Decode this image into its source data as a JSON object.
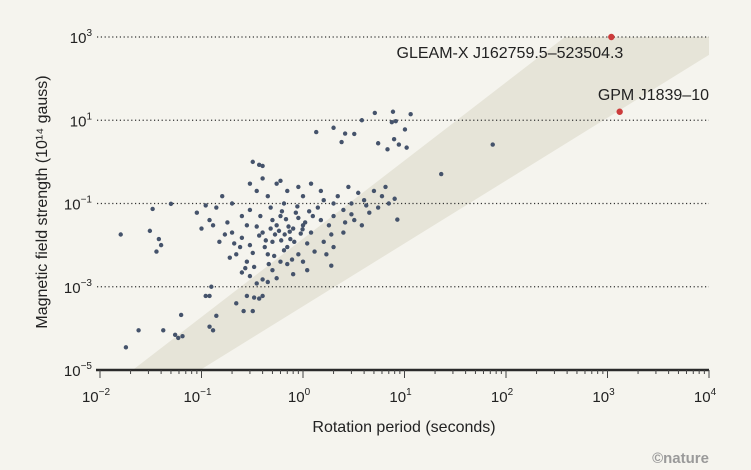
{
  "chart_data": {
    "type": "scatter",
    "title": "",
    "xlabel": "Rotation period (seconds)",
    "ylabel": "Magnetic field strength (10¹⁴ gauss)",
    "xscale": "log",
    "yscale": "log",
    "xlim": [
      0.01,
      10000
    ],
    "ylim": [
      1e-05,
      1000
    ],
    "x_ticks": [
      {
        "value": 0.01,
        "base": "10",
        "exp": "−2"
      },
      {
        "value": 0.1,
        "base": "10",
        "exp": "−1"
      },
      {
        "value": 1,
        "base": "10",
        "exp": "0"
      },
      {
        "value": 10,
        "base": "10",
        "exp": "1"
      },
      {
        "value": 100,
        "base": "10",
        "exp": "2"
      },
      {
        "value": 1000,
        "base": "10",
        "exp": "3"
      },
      {
        "value": 10000,
        "base": "10",
        "exp": "4"
      }
    ],
    "y_ticks": [
      {
        "value": 1000,
        "base": "10",
        "exp": "3"
      },
      {
        "value": 10,
        "base": "10",
        "exp": "1"
      },
      {
        "value": 0.1,
        "base": "10",
        "exp": "−1"
      },
      {
        "value": 0.001,
        "base": "10",
        "exp": "−3"
      },
      {
        "value": 1e-05,
        "base": "10",
        "exp": "−5"
      }
    ],
    "grid": "horizontal dotted at major y ticks",
    "shaded_band": {
      "polygon": [
        [
          0.021,
          1e-05
        ],
        [
          380,
          1000
        ],
        [
          10000,
          1000
        ],
        [
          10000,
          372
        ],
        [
          0.097,
          1e-05
        ]
      ],
      "color": "#e6e4d8"
    },
    "colors": {
      "points": "#45536b",
      "highlight": "#cc3b3b",
      "background": "#f5f4ee"
    },
    "highlighted": [
      {
        "label": "GLEAM-X J162759.5–523504.3",
        "x": 1091,
        "y": 1000
      },
      {
        "label": "GPM J1839–10",
        "x": 1318,
        "y": 16
      }
    ],
    "points": [
      [
        0.016,
        0.018
      ],
      [
        0.018,
        3.5e-05
      ],
      [
        0.024,
        9e-05
      ],
      [
        0.042,
        9e-05
      ],
      [
        0.063,
        0.00021
      ],
      [
        0.059,
        5.9e-05
      ],
      [
        0.055,
        7e-05
      ],
      [
        0.065,
        6.5e-05
      ],
      [
        0.12,
        0.00011
      ],
      [
        0.13,
        9e-05
      ],
      [
        0.14,
        0.0002
      ],
      [
        0.031,
        0.022
      ],
      [
        0.05,
        0.098
      ],
      [
        0.033,
        0.074
      ],
      [
        0.036,
        0.007
      ],
      [
        0.04,
        0.01
      ],
      [
        0.038,
        0.014
      ],
      [
        0.32,
        1.0
      ],
      [
        0.37,
        0.85
      ],
      [
        0.4,
        0.8
      ],
      [
        1.35,
        5.2
      ],
      [
        2.0,
        6.6
      ],
      [
        2.6,
        4.8
      ],
      [
        3.2,
        4.7
      ],
      [
        3.8,
        10
      ],
      [
        5.1,
        15
      ],
      [
        7.7,
        16
      ],
      [
        11.5,
        14
      ],
      [
        7.5,
        9
      ],
      [
        8.2,
        9.5
      ],
      [
        10.1,
        6
      ],
      [
        2.4,
        3
      ],
      [
        5.5,
        2.8
      ],
      [
        6.8,
        2.0
      ],
      [
        7.9,
        3.5
      ],
      [
        8.8,
        2.6
      ],
      [
        10.5,
        2.2
      ],
      [
        23,
        0.51
      ],
      [
        74,
        2.6
      ],
      [
        8.5,
        0.041
      ],
      [
        1.9,
        0.0032
      ],
      [
        0.26,
        0.00026
      ],
      [
        0.32,
        0.00026
      ],
      [
        0.22,
        0.0004
      ],
      [
        0.28,
        0.0006
      ],
      [
        0.33,
        0.00055
      ],
      [
        0.37,
        0.00052
      ],
      [
        0.4,
        0.0006
      ],
      [
        0.11,
        0.0006
      ],
      [
        0.12,
        0.0006
      ],
      [
        0.125,
        0.001
      ],
      [
        0.66,
        0.018
      ],
      [
        0.5,
        0.012
      ],
      [
        0.8,
        0.025
      ],
      [
        0.4,
        0.02
      ],
      [
        1.0,
        0.03
      ],
      [
        0.3,
        0.01
      ],
      [
        0.55,
        0.03
      ],
      [
        0.7,
        0.009
      ],
      [
        1.2,
        0.02
      ],
      [
        0.9,
        0.045
      ],
      [
        0.35,
        0.028
      ],
      [
        0.45,
        0.006
      ],
      [
        0.6,
        0.05
      ],
      [
        1.5,
        0.04
      ],
      [
        0.25,
        0.015
      ],
      [
        0.75,
        0.014
      ],
      [
        1.1,
        0.011
      ],
      [
        0.5,
        0.04
      ],
      [
        0.42,
        0.009
      ],
      [
        0.85,
        0.06
      ],
      [
        2.0,
        0.05
      ],
      [
        1.8,
        0.03
      ],
      [
        2.5,
        0.07
      ],
      [
        3.0,
        0.1
      ],
      [
        1.4,
        0.08
      ],
      [
        0.2,
        0.02
      ],
      [
        0.18,
        0.035
      ],
      [
        0.15,
        0.012
      ],
      [
        0.22,
        0.006
      ],
      [
        0.28,
        0.004
      ],
      [
        0.33,
        0.003
      ],
      [
        0.5,
        0.0025
      ],
      [
        0.6,
        0.004
      ],
      [
        0.9,
        0.006
      ],
      [
        1.3,
        0.007
      ],
      [
        0.38,
        0.05
      ],
      [
        0.48,
        0.08
      ],
      [
        0.65,
        0.1
      ],
      [
        0.3,
        0.07
      ],
      [
        0.25,
        0.05
      ],
      [
        0.12,
        0.04
      ],
      [
        0.1,
        0.025
      ],
      [
        0.09,
        0.06
      ],
      [
        0.14,
        0.08
      ],
      [
        0.2,
        0.1
      ],
      [
        0.45,
        0.15
      ],
      [
        0.7,
        0.2
      ],
      [
        1.0,
        0.15
      ],
      [
        1.6,
        0.12
      ],
      [
        2.2,
        0.15
      ],
      [
        3.5,
        0.18
      ],
      [
        4.0,
        0.12
      ],
      [
        5.0,
        0.2
      ],
      [
        6.0,
        0.15
      ],
      [
        2.8,
        0.25
      ],
      [
        1.2,
        0.3
      ],
      [
        0.9,
        0.25
      ],
      [
        0.55,
        0.3
      ],
      [
        0.35,
        0.2
      ],
      [
        0.8,
        0.002
      ],
      [
        0.4,
        0.0015
      ],
      [
        0.3,
        0.0018
      ],
      [
        0.35,
        0.0012
      ],
      [
        0.45,
        0.0013
      ],
      [
        0.55,
        0.0016
      ],
      [
        0.25,
        0.0022
      ],
      [
        0.7,
        0.0035
      ],
      [
        1.0,
        0.004
      ],
      [
        1.6,
        0.012
      ],
      [
        2.5,
        0.02
      ],
      [
        3.2,
        0.04
      ],
      [
        4.5,
        0.06
      ],
      [
        5.5,
        0.08
      ],
      [
        7.0,
        0.1
      ],
      [
        8.0,
        0.13
      ],
      [
        6.5,
        0.25
      ],
      [
        2.0,
        0.009
      ],
      [
        1.7,
        0.006
      ],
      [
        0.65,
        0.0075
      ],
      [
        0.52,
        0.0055
      ],
      [
        0.43,
        0.013
      ],
      [
        0.37,
        0.017
      ],
      [
        0.58,
        0.022
      ],
      [
        0.72,
        0.028
      ],
      [
        0.95,
        0.019
      ],
      [
        1.05,
        0.035
      ],
      [
        1.25,
        0.05
      ],
      [
        0.62,
        0.065
      ],
      [
        0.48,
        0.025
      ],
      [
        0.82,
        0.012
      ],
      [
        0.28,
        0.03
      ],
      [
        0.24,
        0.009
      ],
      [
        0.17,
        0.018
      ],
      [
        0.13,
        0.03
      ],
      [
        0.11,
        0.09
      ],
      [
        0.16,
        0.15
      ],
      [
        0.3,
        0.3
      ],
      [
        0.4,
        0.4
      ],
      [
        0.6,
        0.35
      ],
      [
        1.5,
        0.2
      ],
      [
        2.0,
        0.1
      ],
      [
        2.6,
        0.035
      ],
      [
        3.8,
        0.03
      ],
      [
        1.1,
        0.0025
      ],
      [
        0.78,
        0.0045
      ],
      [
        0.46,
        0.0035
      ],
      [
        0.32,
        0.0065
      ],
      [
        0.21,
        0.011
      ],
      [
        0.19,
        0.005
      ],
      [
        0.27,
        0.0028
      ],
      [
        1.9,
        0.018
      ],
      [
        3.0,
        0.055
      ],
      [
        4.2,
        0.09
      ],
      [
        0.68,
        0.042
      ],
      [
        0.88,
        0.085
      ],
      [
        1.15,
        0.065
      ],
      [
        0.53,
        0.018
      ],
      [
        0.61,
        0.013
      ],
      [
        0.74,
        0.021
      ],
      [
        0.99,
        0.024
      ]
    ]
  },
  "credit": "©nature"
}
